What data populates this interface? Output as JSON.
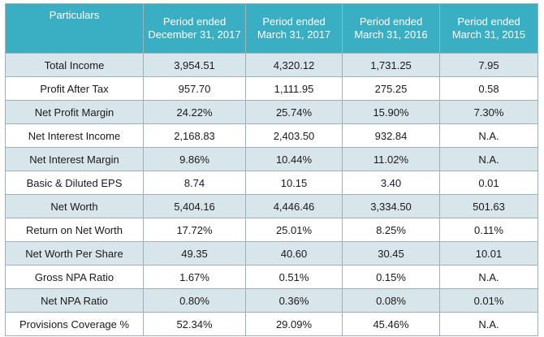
{
  "table": {
    "headers": [
      [
        "Particulars"
      ],
      [
        "Period ended",
        "December 31, 2017"
      ],
      [
        "Period ended",
        "March 31, 2017"
      ],
      [
        "Period ended",
        "March 31, 2016"
      ],
      [
        "Period ended",
        "March 31, 2015"
      ]
    ],
    "rows": [
      [
        "Total Income",
        "3,954.51",
        "4,320.12",
        "1,731.25",
        "7.95"
      ],
      [
        "Profit After Tax",
        "957.70",
        "1,111.95",
        "275.25",
        "0.58"
      ],
      [
        "Net Profit Margin",
        "24.22%",
        "25.74%",
        "15.90%",
        "7.30%"
      ],
      [
        "Net Interest Income",
        "2,168.83",
        "2,403.50",
        "932.84",
        "N.A."
      ],
      [
        "Net Interest Margin",
        "9.86%",
        "10.44%",
        "11.02%",
        "N.A."
      ],
      [
        "Basic & Diluted EPS",
        "8.74",
        "10.15",
        "3.40",
        "0.01"
      ],
      [
        "Net Worth",
        "5,404.16",
        "4,446.46",
        "3,334.50",
        "501.63"
      ],
      [
        "Return on Net Worth",
        "17.72%",
        "25.01%",
        "8.25%",
        "0.11%"
      ],
      [
        "Net Worth Per Share",
        "49.35",
        "40.60",
        "30.45",
        "10.01"
      ],
      [
        "Gross NPA Ratio",
        "1.67%",
        "0.51%",
        "0.15%",
        "N.A."
      ],
      [
        "Net NPA Ratio",
        "0.80%",
        "0.36%",
        "0.08%",
        "0.01%"
      ],
      [
        "Provisions Coverage %",
        "52.34%",
        "29.09%",
        "45.46%",
        "N.A."
      ]
    ]
  },
  "colors": {
    "header_bg": "#3aaec3",
    "header_text": "#ffffff",
    "row_band": "#d8e5ea",
    "border": "#9fb1b8"
  }
}
